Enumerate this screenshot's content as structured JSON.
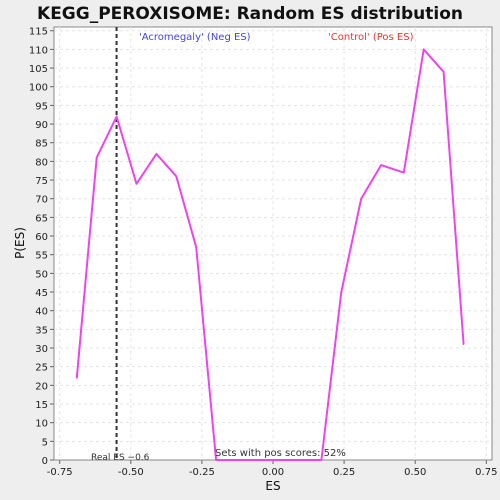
{
  "chart_data": {
    "type": "line",
    "title": "KEGG_PEROXISOME: Random ES distribution",
    "xlabel": "ES",
    "ylabel": "P(ES)",
    "xlim": [
      -0.77,
      0.77
    ],
    "ylim": [
      0,
      116
    ],
    "xticks": [
      -0.75,
      -0.5,
      -0.25,
      0.0,
      0.25,
      0.5,
      0.75
    ],
    "xtick_labels": [
      "-0.75",
      "-0.50",
      "-0.25",
      "0.00",
      "0.25",
      "0.50",
      "0.75"
    ],
    "yticks": [
      0,
      5,
      10,
      15,
      20,
      25,
      30,
      35,
      40,
      45,
      50,
      55,
      60,
      65,
      70,
      75,
      80,
      85,
      90,
      95,
      100,
      105,
      110,
      115
    ],
    "grid": true,
    "series": [
      {
        "color": "#ee44ee",
        "x": [
          -0.69,
          -0.62,
          -0.55,
          -0.48,
          -0.41,
          -0.34,
          -0.27,
          -0.2,
          -0.13,
          -0.06,
          0.02,
          0.09,
          0.17,
          0.24,
          0.31,
          0.38,
          0.46,
          0.53,
          0.6,
          0.67
        ],
        "y": [
          22,
          81,
          92,
          74,
          82,
          76,
          57,
          0,
          0,
          0,
          0,
          0,
          0,
          45,
          70,
          79,
          77,
          110,
          104,
          31
        ]
      }
    ],
    "real_es": {
      "value": -0.55,
      "label": "Real ES −0.6",
      "color": "#333333"
    },
    "annotations": [
      {
        "text": "'Acromegaly' (Neg ES)",
        "color": "#4444dd"
      },
      {
        "text": "'Control' (Pos ES)",
        "color": "#ee3333"
      },
      {
        "text": "Sets with pos scores: 52%",
        "color": "#333333"
      }
    ]
  }
}
